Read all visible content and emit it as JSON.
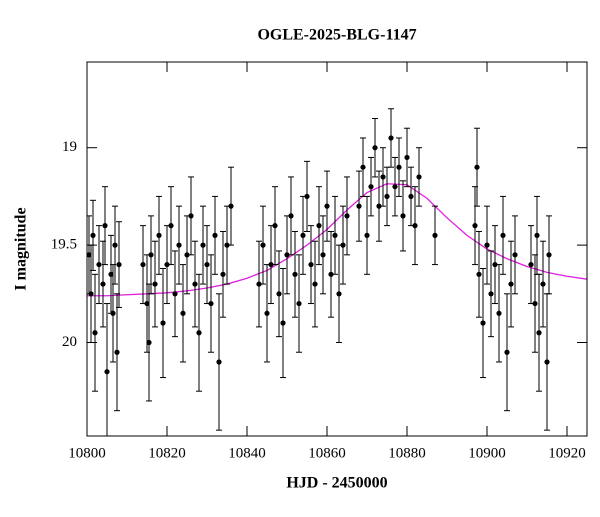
{
  "chart_data": {
    "type": "scatter",
    "title": "OGLE-2025-BLG-1147",
    "xlabel": "HJD - 2450000",
    "ylabel": "I magnitude",
    "xlim": [
      10800,
      10925
    ],
    "ylim": [
      18.56,
      20.48
    ],
    "invert_y": true,
    "xticks": [
      10800,
      10820,
      10840,
      10860,
      10880,
      10900,
      10920
    ],
    "yticks": [
      19,
      19.5,
      20
    ],
    "series": [
      {
        "type": "scatter",
        "color": "#000000",
        "x": [
          10800.5,
          10801,
          10801.5,
          10802,
          10803,
          10804,
          10804.5,
          10805,
          10806,
          10806.5,
          10807,
          10807.5,
          10808,
          10814,
          10815,
          10815.5,
          10816,
          10817,
          10818,
          10819,
          10820,
          10821,
          10822,
          10823,
          10824,
          10825,
          10826,
          10827,
          10828,
          10829,
          10830,
          10831,
          10832,
          10833,
          10834,
          10835,
          10836,
          10843,
          10844,
          10845,
          10846,
          10847,
          10848,
          10849,
          10850,
          10851,
          10852,
          10853,
          10854,
          10855,
          10856,
          10857,
          10858,
          10859,
          10860,
          10861,
          10862,
          10863,
          10864,
          10865,
          10868,
          10869,
          10870,
          10871,
          10872,
          10873,
          10874,
          10875,
          10876,
          10877,
          10878,
          10879,
          10880,
          10881,
          10882,
          10883,
          10887,
          10897,
          10897.5,
          10898,
          10899,
          10900,
          10901,
          10902,
          10903,
          10904,
          10905,
          10906,
          10907,
          10911,
          10912,
          10912.5,
          10913,
          10914,
          10915,
          10915.5
        ],
        "values": [
          19.55,
          19.75,
          19.45,
          19.95,
          19.6,
          19.7,
          19.4,
          20.15,
          19.65,
          19.85,
          19.5,
          20.05,
          19.6,
          19.6,
          19.8,
          20.0,
          19.55,
          19.7,
          19.45,
          19.9,
          19.6,
          19.4,
          19.75,
          19.5,
          19.85,
          19.55,
          19.35,
          19.7,
          19.95,
          19.5,
          19.6,
          19.8,
          19.45,
          20.1,
          19.65,
          19.5,
          19.3,
          19.7,
          19.5,
          19.85,
          19.6,
          19.4,
          19.75,
          19.9,
          19.55,
          19.35,
          19.65,
          19.8,
          19.45,
          19.25,
          19.6,
          19.7,
          19.4,
          19.55,
          19.3,
          19.65,
          19.45,
          19.75,
          19.5,
          19.35,
          19.3,
          19.1,
          19.45,
          19.2,
          19.0,
          19.3,
          19.15,
          19.25,
          18.95,
          19.2,
          19.1,
          19.35,
          19.05,
          19.25,
          19.4,
          19.15,
          19.45,
          19.4,
          19.1,
          19.65,
          19.9,
          19.5,
          19.75,
          19.6,
          19.85,
          19.45,
          20.05,
          19.7,
          19.55,
          19.6,
          19.8,
          19.45,
          19.95,
          19.7,
          20.1,
          19.55
        ],
        "errors": [
          0.2,
          0.25,
          0.18,
          0.3,
          0.2,
          0.22,
          0.2,
          0.35,
          0.2,
          0.25,
          0.2,
          0.3,
          0.22,
          0.2,
          0.25,
          0.3,
          0.2,
          0.22,
          0.2,
          0.28,
          0.2,
          0.2,
          0.22,
          0.2,
          0.25,
          0.2,
          0.2,
          0.22,
          0.3,
          0.2,
          0.2,
          0.25,
          0.2,
          0.35,
          0.22,
          0.2,
          0.2,
          0.22,
          0.2,
          0.25,
          0.2,
          0.2,
          0.22,
          0.28,
          0.2,
          0.2,
          0.22,
          0.25,
          0.2,
          0.18,
          0.2,
          0.22,
          0.2,
          0.2,
          0.18,
          0.22,
          0.2,
          0.25,
          0.2,
          0.2,
          0.18,
          0.15,
          0.2,
          0.15,
          0.15,
          0.18,
          0.15,
          0.15,
          0.15,
          0.15,
          0.15,
          0.18,
          0.15,
          0.15,
          0.2,
          0.15,
          0.15,
          0.2,
          0.2,
          0.22,
          0.28,
          0.2,
          0.22,
          0.2,
          0.25,
          0.2,
          0.3,
          0.22,
          0.2,
          0.2,
          0.25,
          0.2,
          0.3,
          0.22,
          0.35,
          0.2
        ]
      },
      {
        "type": "line",
        "color": "#e020e0",
        "x": [
          10800,
          10805,
          10810,
          10815,
          10820,
          10825,
          10830,
          10835,
          10840,
          10845,
          10850,
          10855,
          10860,
          10865,
          10870,
          10875,
          10880,
          10885,
          10890,
          10895,
          10900,
          10905,
          10910,
          10915,
          10920,
          10925
        ],
        "values": [
          19.76,
          19.76,
          19.755,
          19.75,
          19.745,
          19.735,
          19.72,
          19.7,
          19.67,
          19.63,
          19.57,
          19.5,
          19.42,
          19.32,
          19.23,
          19.185,
          19.19,
          19.26,
          19.36,
          19.45,
          19.52,
          19.57,
          19.61,
          19.64,
          19.66,
          19.675
        ]
      }
    ]
  }
}
